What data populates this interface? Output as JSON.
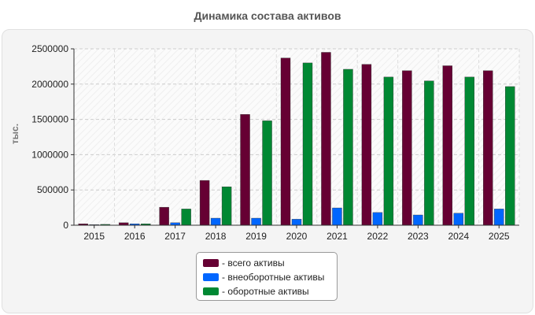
{
  "chart_data": {
    "type": "bar",
    "title": "Динамика состава активов",
    "ylabel": "тыс.",
    "xlabel": "",
    "categories": [
      "2015",
      "2016",
      "2017",
      "2018",
      "2019",
      "2020",
      "2021",
      "2022",
      "2023",
      "2024",
      "2025"
    ],
    "series": [
      {
        "name": "- всего активы",
        "color": "#660033",
        "values": [
          20000,
          35000,
          255000,
          635000,
          1570000,
          2370000,
          2450000,
          2280000,
          2190000,
          2260000,
          2190000
        ]
      },
      {
        "name": "- внеоборотные активы",
        "color": "#0066ff",
        "values": [
          8000,
          20000,
          35000,
          100000,
          100000,
          85000,
          245000,
          180000,
          145000,
          170000,
          230000
        ]
      },
      {
        "name": "- оборотные активы",
        "color": "#008833",
        "values": [
          12000,
          20000,
          230000,
          545000,
          1480000,
          2300000,
          2210000,
          2100000,
          2045000,
          2100000,
          1965000
        ]
      }
    ],
    "ylim": [
      0,
      2500000
    ],
    "yticks": [
      0,
      500000,
      1000000,
      1500000,
      2000000,
      2500000
    ],
    "ytick_labels": [
      "0",
      "500000",
      "1000000",
      "1500000",
      "2000000",
      "2500000"
    ],
    "grid": true,
    "legend_position": "bottom-center"
  }
}
